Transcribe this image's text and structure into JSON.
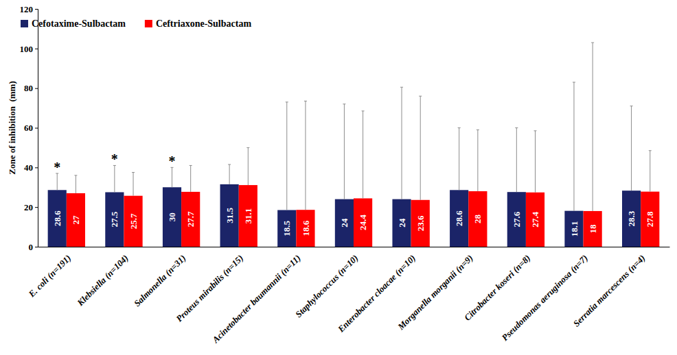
{
  "chart_data": {
    "type": "bar",
    "y_label": "Zone of inhibition  (mm)",
    "categories": [
      "E. coli (n=191)",
      "Klebsiella (n=104)",
      "Salmonella (n=31)",
      "Proteus mirabilis (n=15)",
      "Acinetobacter baumannii (n=11)",
      "Staphylococcus (n=10)",
      "Enterobacter cloacae (n=10)",
      "Morganella morganii (n=9)",
      "Citrobacter koseri (n=8)",
      "Pseudomonas aeruginosa (n=7)",
      "Serratia marcescens (n=4)"
    ],
    "series": [
      {
        "name": "Cefotaxime-Sulbactam",
        "color": "#1b2468",
        "values": [
          28.6,
          27.5,
          30,
          31.5,
          18.5,
          24,
          24,
          28.6,
          27.6,
          18.1,
          28.3
        ],
        "errors": [
          8.4,
          13.5,
          10,
          10,
          54.5,
          48,
          56.5,
          31.4,
          32.4,
          64.9,
          42.7
        ]
      },
      {
        "name": "Ceftriaxone-Sulbactam",
        "color": "#ff0000",
        "values": [
          27,
          25.7,
          27.7,
          31.1,
          18.6,
          24.4,
          23.6,
          28,
          27.4,
          18,
          27.8
        ],
        "errors": [
          9,
          11.8,
          13.3,
          18.9,
          54.9,
          44.1,
          52.4,
          31,
          31.1,
          85,
          20.7
        ]
      }
    ],
    "ylim": [
      0,
      120
    ],
    "yticks": [
      0,
      20,
      40,
      60,
      80,
      100,
      120
    ],
    "grid": false,
    "legend": "upper left",
    "data_labels": true,
    "annotations": [
      {
        "text": "*",
        "category": "E. coli (n=191)"
      },
      {
        "text": "*",
        "category": "Klebsiella (n=104)"
      },
      {
        "text": "*",
        "category": "Salmonella (n=31)"
      }
    ]
  }
}
